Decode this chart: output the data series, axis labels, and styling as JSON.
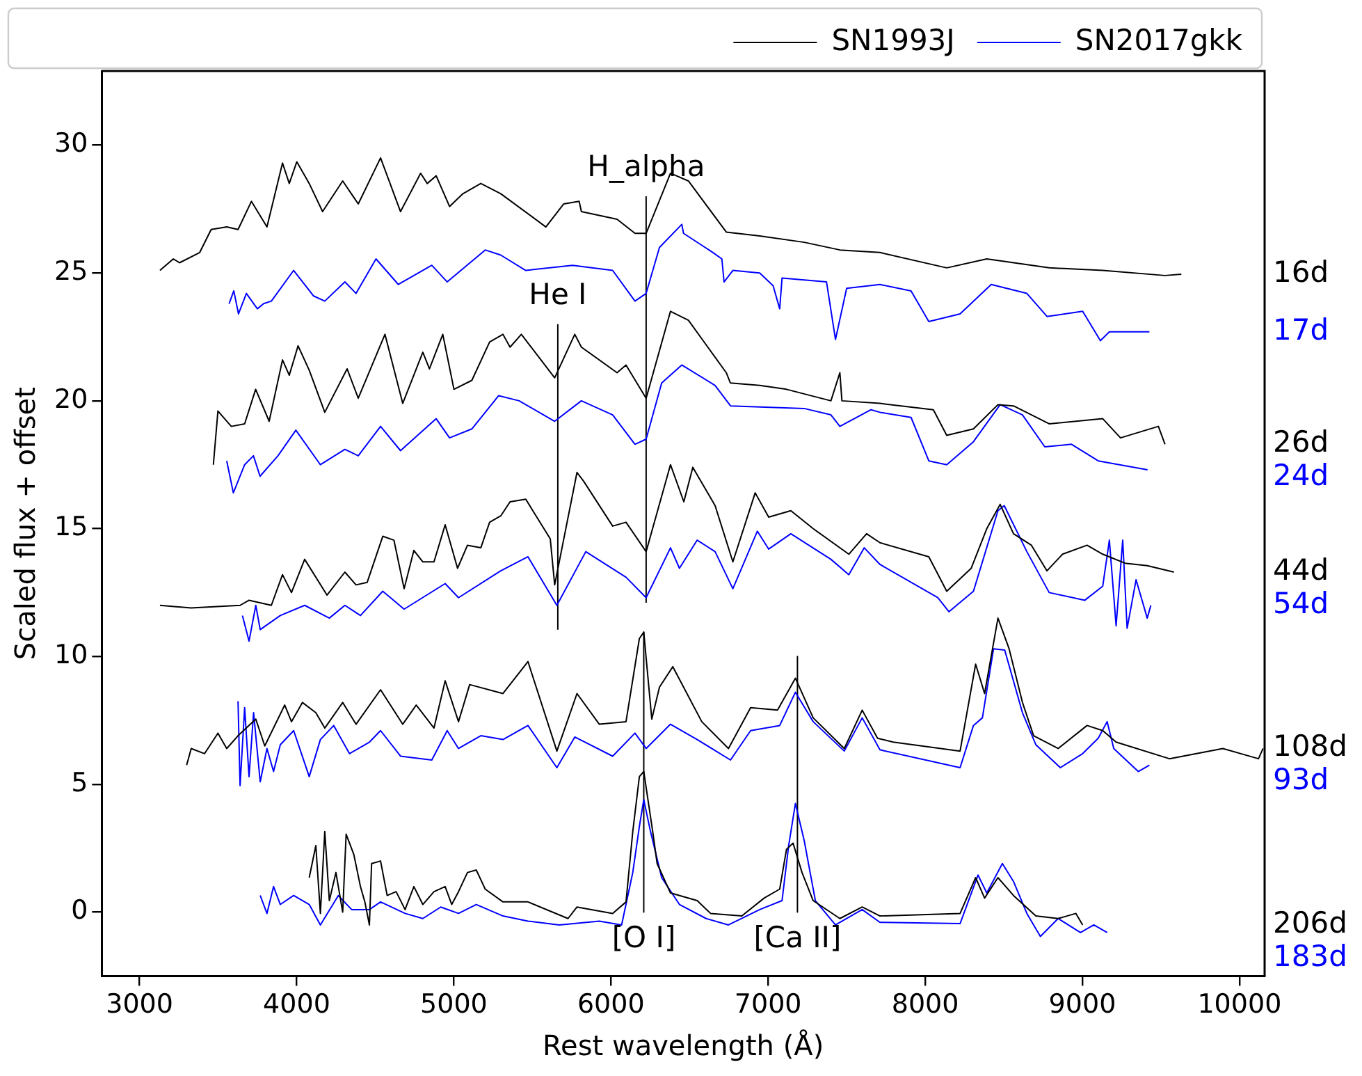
{
  "chart_data": {
    "type": "line",
    "xlabel": "Rest wavelength (Å)",
    "ylabel": "Scaled flux + offset",
    "xlim": [
      2760,
      10160
    ],
    "ylim": [
      -2.5,
      32.9
    ],
    "xticks": [
      3000,
      4000,
      5000,
      6000,
      7000,
      8000,
      9000,
      10000
    ],
    "yticks": [
      0,
      5,
      10,
      15,
      20,
      25,
      30
    ],
    "legend": "top right",
    "marker": "none",
    "line_style": "solid",
    "series": [
      {
        "name": "SN1993J",
        "color": "#000000",
        "x": [
          3130,
          3215,
          3255,
          3383,
          3456,
          3555,
          3627,
          3712,
          3811,
          3910,
          3953,
          4001,
          4080,
          4165,
          4293,
          4392,
          4534,
          4661,
          4789,
          4831,
          4888,
          4973,
          5058,
          5172,
          5299,
          5586,
          5699,
          5798,
          5812,
          6039,
          6153,
          6224,
          6379,
          6493,
          6734,
          6947,
          7230,
          7457,
          7712,
          8137,
          8392,
          8789,
          9130,
          9526,
          9630
        ],
        "values": [
          25.1,
          25.55,
          25.4,
          25.8,
          26.7,
          26.8,
          26.7,
          27.8,
          26.8,
          29.3,
          28.5,
          29.35,
          28.5,
          27.4,
          28.6,
          27.7,
          29.5,
          27.4,
          28.9,
          28.5,
          28.8,
          27.6,
          28.1,
          28.5,
          28.1,
          26.8,
          27.7,
          27.8,
          27.4,
          27.1,
          26.55,
          26.55,
          28.9,
          28.6,
          26.6,
          26.45,
          26.2,
          25.9,
          25.8,
          25.2,
          25.55,
          25.2,
          25.1,
          24.9,
          24.95
        ]
      },
      {
        "name": "SN2017gkk",
        "color": "#0000ff",
        "x": [
          3570,
          3600,
          3630,
          3680,
          3750,
          3790,
          3839,
          3981,
          4108,
          4179,
          4307,
          4378,
          4505,
          4647,
          4860,
          4958,
          5200,
          5299,
          5458,
          5756,
          6011,
          6153,
          6224,
          6309,
          6451,
          6462,
          6649,
          6706,
          6720,
          6776,
          6947,
          7032,
          7074,
          7089,
          7372,
          7429,
          7500,
          7712,
          7910,
          8023,
          8222,
          8420,
          8647,
          8775,
          9002,
          9115,
          9172,
          9427
        ],
        "values": [
          23.8,
          24.3,
          23.4,
          24.2,
          23.6,
          23.8,
          23.9,
          25.1,
          24.1,
          23.9,
          24.65,
          24.2,
          25.55,
          24.55,
          25.3,
          24.65,
          25.9,
          25.7,
          25.1,
          25.3,
          25.1,
          23.9,
          24.2,
          26.0,
          26.9,
          26.55,
          25.8,
          25.55,
          24.65,
          25.1,
          25.0,
          24.5,
          23.6,
          24.8,
          24.65,
          22.4,
          24.4,
          24.55,
          24.3,
          23.1,
          23.4,
          24.55,
          24.2,
          23.3,
          23.5,
          22.35,
          22.7,
          22.7
        ]
      },
      {
        "color": "#000000",
        "x": [
          3470,
          3499,
          3584,
          3669,
          3739,
          3825,
          3910,
          3953,
          4009,
          4080,
          4179,
          4321,
          4392,
          4562,
          4675,
          4803,
          4845,
          4930,
          5001,
          5115,
          5228,
          5313,
          5358,
          5430,
          5642,
          5770,
          5812,
          6039,
          6096,
          6224,
          6379,
          6493,
          6734,
          6760,
          6947,
          7117,
          7400,
          7457,
          7470,
          7712,
          8052,
          8137,
          8307,
          8463,
          8562,
          8789,
          9130,
          9243,
          9484,
          9526
        ],
        "values": [
          17.5,
          19.6,
          19.0,
          19.1,
          20.45,
          19.2,
          21.6,
          21.0,
          22.15,
          21.2,
          19.55,
          21.25,
          20.1,
          22.6,
          19.9,
          21.9,
          21.25,
          22.6,
          20.45,
          20.8,
          22.3,
          22.6,
          22.1,
          22.6,
          20.9,
          22.6,
          22.1,
          21.1,
          21.4,
          20.1,
          23.5,
          23.15,
          21.1,
          20.7,
          20.6,
          20.45,
          20.0,
          21.1,
          20.0,
          19.9,
          19.65,
          18.65,
          18.9,
          19.85,
          19.8,
          19.1,
          19.3,
          18.55,
          19.0,
          18.3
        ]
      },
      {
        "color": "#0000ff",
        "x": [
          3555,
          3597,
          3669,
          3725,
          3767,
          3881,
          3995,
          4151,
          4307,
          4392,
          4534,
          4661,
          4888,
          4973,
          5115,
          5285,
          5416,
          5642,
          5812,
          6011,
          6153,
          6224,
          6323,
          6451,
          6663,
          6761,
          7230,
          7400,
          7457,
          7655,
          7712,
          7910,
          8023,
          8137,
          8307,
          8477,
          8619,
          8761,
          8931,
          9101,
          9415
        ],
        "values": [
          17.65,
          16.4,
          17.5,
          17.85,
          17.05,
          17.85,
          18.85,
          17.5,
          18.1,
          17.85,
          19.0,
          18.05,
          19.3,
          18.55,
          18.9,
          20.2,
          20.0,
          19.2,
          20.0,
          19.45,
          18.3,
          18.5,
          20.7,
          21.4,
          20.6,
          19.8,
          19.7,
          19.45,
          19.0,
          19.65,
          19.55,
          19.35,
          17.65,
          17.5,
          18.4,
          19.85,
          19.45,
          18.2,
          18.3,
          17.65,
          17.3
        ]
      },
      {
        "color": "#000000",
        "x": [
          3130,
          3328,
          3640,
          3697,
          3839,
          3910,
          3967,
          4051,
          4193,
          4307,
          4378,
          4449,
          4548,
          4619,
          4684,
          4746,
          4803,
          4874,
          4945,
          5024,
          5087,
          5172,
          5228,
          5299,
          5358,
          5458,
          5614,
          5642,
          5784,
          5827,
          6011,
          6096,
          6224,
          6379,
          6464,
          6521,
          6663,
          6776,
          6918,
          7004,
          7145,
          7287,
          7514,
          7627,
          7712,
          8023,
          8137,
          8293,
          8392,
          8477,
          8562,
          8676,
          8775,
          8874,
          9030,
          9130,
          9271,
          9413,
          9583
        ],
        "values": [
          12.0,
          11.9,
          12.0,
          12.2,
          12.0,
          13.2,
          12.5,
          13.8,
          12.4,
          13.3,
          12.8,
          12.9,
          14.7,
          14.55,
          12.65,
          14.15,
          13.7,
          13.7,
          15.15,
          13.45,
          14.35,
          14.25,
          15.25,
          15.5,
          16.05,
          16.15,
          14.6,
          12.8,
          17.2,
          16.85,
          15.1,
          15.25,
          14.1,
          17.5,
          16.05,
          17.4,
          15.9,
          13.7,
          16.4,
          15.45,
          15.7,
          15.0,
          14.0,
          14.8,
          14.45,
          13.9,
          12.55,
          13.45,
          15.0,
          15.95,
          14.8,
          14.35,
          13.35,
          14.0,
          14.35,
          14.0,
          13.65,
          13.55,
          13.3
        ]
      },
      {
        "color": "#0000ff",
        "x": [
          3655,
          3697,
          3740,
          3768,
          3896,
          4051,
          4208,
          4307,
          4406,
          4548,
          4684,
          4945,
          5030,
          5299,
          5472,
          5656,
          5840,
          6096,
          6224,
          6379,
          6436,
          6549,
          6663,
          6776,
          6932,
          7004,
          7145,
          7400,
          7514,
          7612,
          7712,
          8080,
          8151,
          8307,
          8463,
          8503,
          8647,
          8789,
          9016,
          9130,
          9172,
          9215,
          9257,
          9285,
          9342,
          9413,
          9436
        ],
        "values": [
          11.6,
          10.6,
          12.0,
          11.05,
          11.6,
          12.0,
          11.5,
          12.0,
          11.6,
          12.55,
          11.85,
          12.85,
          12.3,
          13.35,
          13.9,
          12.0,
          14.1,
          13.1,
          12.3,
          14.25,
          13.45,
          14.55,
          14.1,
          12.65,
          14.9,
          14.2,
          14.8,
          13.8,
          13.2,
          14.25,
          13.6,
          12.3,
          11.75,
          12.55,
          15.7,
          15.9,
          14.1,
          12.5,
          12.2,
          12.75,
          14.55,
          11.2,
          14.55,
          11.1,
          13.0,
          11.5,
          12.0
        ]
      },
      {
        "color": "#000000",
        "x": [
          3300,
          3329,
          3414,
          3499,
          3555,
          3627,
          3740,
          3797,
          3924,
          3967,
          4037,
          4122,
          4179,
          4293,
          4378,
          4534,
          4675,
          4761,
          4874,
          4945,
          5030,
          5101,
          5313,
          5472,
          5656,
          5784,
          5926,
          6096,
          6181,
          6209,
          6260,
          6309,
          6394,
          6578,
          6748,
          6889,
          7060,
          7174,
          7287,
          7485,
          7599,
          7697,
          7797,
          8222,
          8321,
          8378,
          8463,
          8534,
          8619,
          8690,
          8846,
          9030,
          9130,
          9215,
          9554,
          9894,
          10121,
          10150
        ],
        "values": [
          5.75,
          6.4,
          6.2,
          7.0,
          6.4,
          6.9,
          7.55,
          6.5,
          8.1,
          7.45,
          8.2,
          7.8,
          7.2,
          8.2,
          7.35,
          8.7,
          7.35,
          8.1,
          7.2,
          9.05,
          7.45,
          8.9,
          8.55,
          9.8,
          6.3,
          8.55,
          7.35,
          7.45,
          10.7,
          10.95,
          7.55,
          8.8,
          9.6,
          7.45,
          6.4,
          8.0,
          7.9,
          9.15,
          7.6,
          6.4,
          7.9,
          6.8,
          6.65,
          6.3,
          9.7,
          8.55,
          11.5,
          10.3,
          8.2,
          6.9,
          6.4,
          7.3,
          7.1,
          6.65,
          6.0,
          6.4,
          6.0,
          6.4
        ]
      },
      {
        "color": "#0000ff",
        "x": [
          3627,
          3640,
          3669,
          3697,
          3726,
          3768,
          3811,
          3853,
          3896,
          3981,
          4080,
          4151,
          4236,
          4336,
          4463,
          4534,
          4661,
          4860,
          4958,
          5030,
          5172,
          5313,
          5472,
          5656,
          5770,
          6011,
          6153,
          6224,
          6379,
          6549,
          6761,
          6889,
          7074,
          7174,
          7287,
          7485,
          7599,
          7712,
          8222,
          8307,
          8364,
          8435,
          8506,
          8619,
          8704,
          8860,
          9002,
          9101,
          9158,
          9200,
          9356,
          9427
        ],
        "values": [
          8.25,
          4.95,
          8.0,
          5.3,
          7.8,
          5.1,
          6.4,
          5.5,
          6.55,
          7.1,
          5.3,
          6.75,
          7.3,
          6.2,
          6.65,
          7.1,
          6.1,
          5.95,
          7.1,
          6.4,
          6.9,
          6.75,
          7.3,
          5.65,
          6.85,
          6.1,
          7.0,
          6.4,
          7.35,
          6.75,
          5.95,
          7.1,
          7.3,
          8.6,
          7.45,
          6.3,
          7.6,
          6.35,
          5.65,
          7.3,
          7.6,
          10.3,
          10.25,
          7.8,
          6.55,
          5.65,
          6.2,
          6.8,
          7.45,
          6.4,
          5.5,
          5.75
        ]
      },
      {
        "color": "#000000",
        "x": [
          4080,
          4122,
          4151,
          4179,
          4208,
          4250,
          4293,
          4315,
          4364,
          4406,
          4434,
          4463,
          4477,
          4534,
          4576,
          4633,
          4690,
          4746,
          4803,
          4874,
          4945,
          4987,
          5030,
          5087,
          5143,
          5200,
          5313,
          5472,
          5727,
          5784,
          6011,
          6096,
          6139,
          6181,
          6209,
          6266,
          6294,
          6379,
          6549,
          6634,
          6833,
          6975,
          7074,
          7117,
          7159,
          7216,
          7287,
          7457,
          7599,
          7712,
          8222,
          8321,
          8378,
          8463,
          8562,
          8704,
          8846,
          8959,
          9002
        ],
        "values": [
          1.35,
          2.6,
          -0.05,
          3.15,
          0.45,
          1.55,
          0.0,
          3.05,
          2.25,
          1.0,
          0.4,
          -0.5,
          1.9,
          2.0,
          0.65,
          0.8,
          0.1,
          1.0,
          0.3,
          0.8,
          1.0,
          0.3,
          0.8,
          1.55,
          1.65,
          0.9,
          0.4,
          0.4,
          -0.25,
          0.2,
          -0.05,
          0.4,
          3.15,
          5.3,
          5.5,
          3.15,
          1.9,
          0.75,
          0.45,
          -0.05,
          -0.15,
          0.55,
          0.9,
          2.45,
          2.7,
          1.55,
          0.45,
          -0.25,
          0.2,
          -0.15,
          -0.05,
          1.35,
          0.55,
          1.35,
          0.65,
          -0.15,
          -0.25,
          -0.05,
          -0.5
        ]
      },
      {
        "color": "#0000ff",
        "x": [
          3768,
          3811,
          3853,
          3896,
          3981,
          4080,
          4151,
          4265,
          4350,
          4463,
          4534,
          4690,
          4803,
          4917,
          5030,
          5143,
          5313,
          5472,
          5671,
          5926,
          6068,
          6139,
          6181,
          6209,
          6252,
          6323,
          6436,
          6606,
          6748,
          6947,
          7089,
          7131,
          7174,
          7230,
          7301,
          7429,
          7599,
          7712,
          8222,
          8336,
          8392,
          8491,
          8562,
          8647,
          8733,
          8846,
          8988,
          9073,
          9158
        ],
        "values": [
          0.65,
          -0.05,
          1.0,
          0.3,
          0.65,
          0.3,
          -0.5,
          0.65,
          0.1,
          0.1,
          0.4,
          -0.05,
          -0.25,
          0.2,
          -0.05,
          0.3,
          -0.15,
          -0.35,
          -0.5,
          -0.35,
          -0.5,
          1.55,
          3.35,
          4.4,
          3.15,
          1.35,
          0.3,
          -0.25,
          -0.5,
          0.1,
          0.45,
          2.6,
          4.25,
          2.8,
          0.45,
          -0.5,
          0.1,
          -0.4,
          -0.45,
          1.45,
          0.75,
          1.9,
          1.2,
          -0.05,
          -0.95,
          -0.25,
          -0.8,
          -0.5,
          -0.8
        ]
      },
      {
        "color": "#000000",
        "x": [
          6224,
          6224
        ],
        "values": [
          12.1,
          28.0
        ]
      },
      {
        "color": "#000000",
        "x": [
          5662,
          5662
        ],
        "values": [
          11.05,
          23.0
        ]
      },
      {
        "color": "#000000",
        "x": [
          6209,
          6209
        ],
        "values": [
          10.95,
          0.0
        ]
      },
      {
        "color": "#000000",
        "x": [
          7187,
          7187
        ],
        "values": [
          10.0,
          0.0
        ]
      }
    ],
    "annotations": [
      "16d",
      "17d",
      "26d",
      "24d",
      "44d",
      "54d",
      "108d",
      "93d",
      "206d",
      "183d",
      "H_alpha",
      "He I",
      "[O I]",
      "[Ca II]"
    ]
  }
}
